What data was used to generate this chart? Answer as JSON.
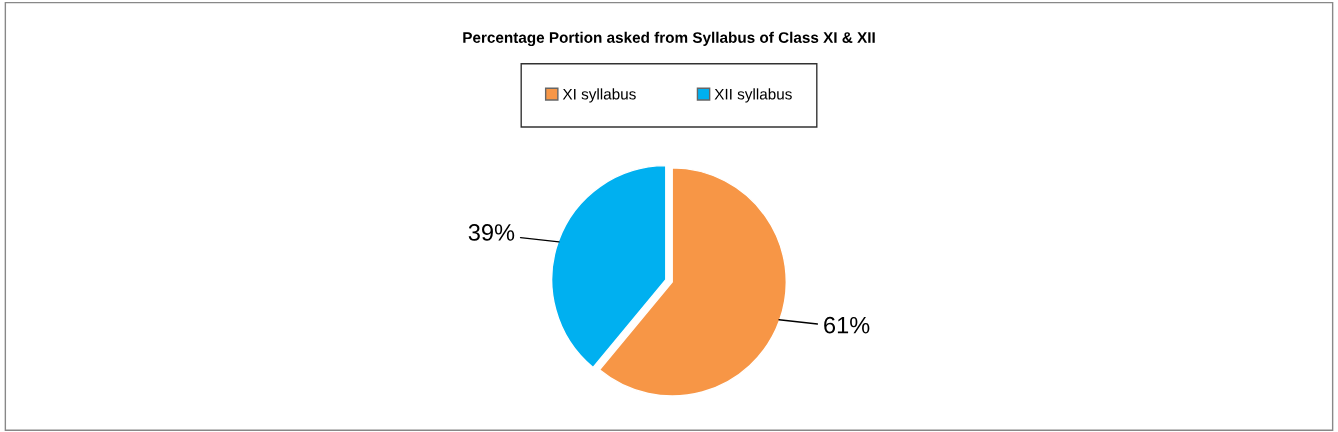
{
  "chart_data": {
    "type": "pie",
    "title": "Percentage Portion asked from Syllabus of Class XI & XII",
    "categories": [
      "XI syllabus",
      "XII syllabus"
    ],
    "values": [
      61,
      39
    ],
    "colors": [
      "#f79646",
      "#00b0f0"
    ],
    "value_labels": [
      "61%",
      "39%"
    ],
    "legend": "top"
  }
}
